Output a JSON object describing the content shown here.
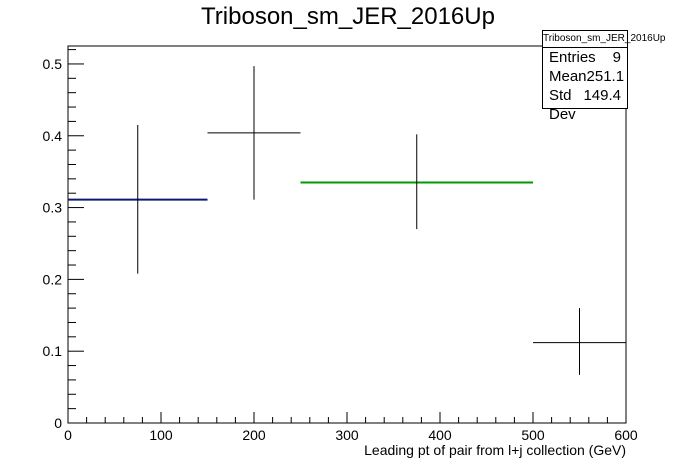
{
  "chart_data": {
    "type": "scatter",
    "title": "Triboson_sm_JER_2016Up",
    "xlabel": "Leading pt of pair from l+j collection (GeV)",
    "ylabel": "",
    "xlim": [
      0,
      600
    ],
    "ylim": [
      0,
      0.525
    ],
    "xticks": [
      "0",
      "100",
      "200",
      "300",
      "400",
      "500",
      "600"
    ],
    "yticks": [
      "0",
      "0.1",
      "0.2",
      "0.3",
      "0.4",
      "0.5"
    ],
    "grid": false,
    "points": [
      {
        "xlow": 0,
        "xhigh": 150,
        "x": 75,
        "y": 0.311,
        "yerr_low": 0.208,
        "yerr_high": 0.415,
        "color": "#0a1a6e"
      },
      {
        "xlow": 150,
        "xhigh": 250,
        "x": 200,
        "y": 0.404,
        "yerr_low": 0.311,
        "yerr_high": 0.497,
        "color": "#000000"
      },
      {
        "xlow": 250,
        "xhigh": 500,
        "x": 375,
        "y": 0.335,
        "yerr_low": 0.27,
        "yerr_high": 0.402,
        "color": "#009900"
      },
      {
        "xlow": 500,
        "xhigh": 600,
        "x": 550,
        "y": 0.112,
        "yerr_low": 0.067,
        "yerr_high": 0.16,
        "color": "#000000"
      }
    ],
    "stats": {
      "title": "Triboson_sm_JER_2016Up",
      "rows": [
        {
          "label": "Entries",
          "value": "9"
        },
        {
          "label": "Mean",
          "value": "251.1"
        },
        {
          "label": "Std Dev",
          "value": "149.4"
        }
      ]
    }
  }
}
